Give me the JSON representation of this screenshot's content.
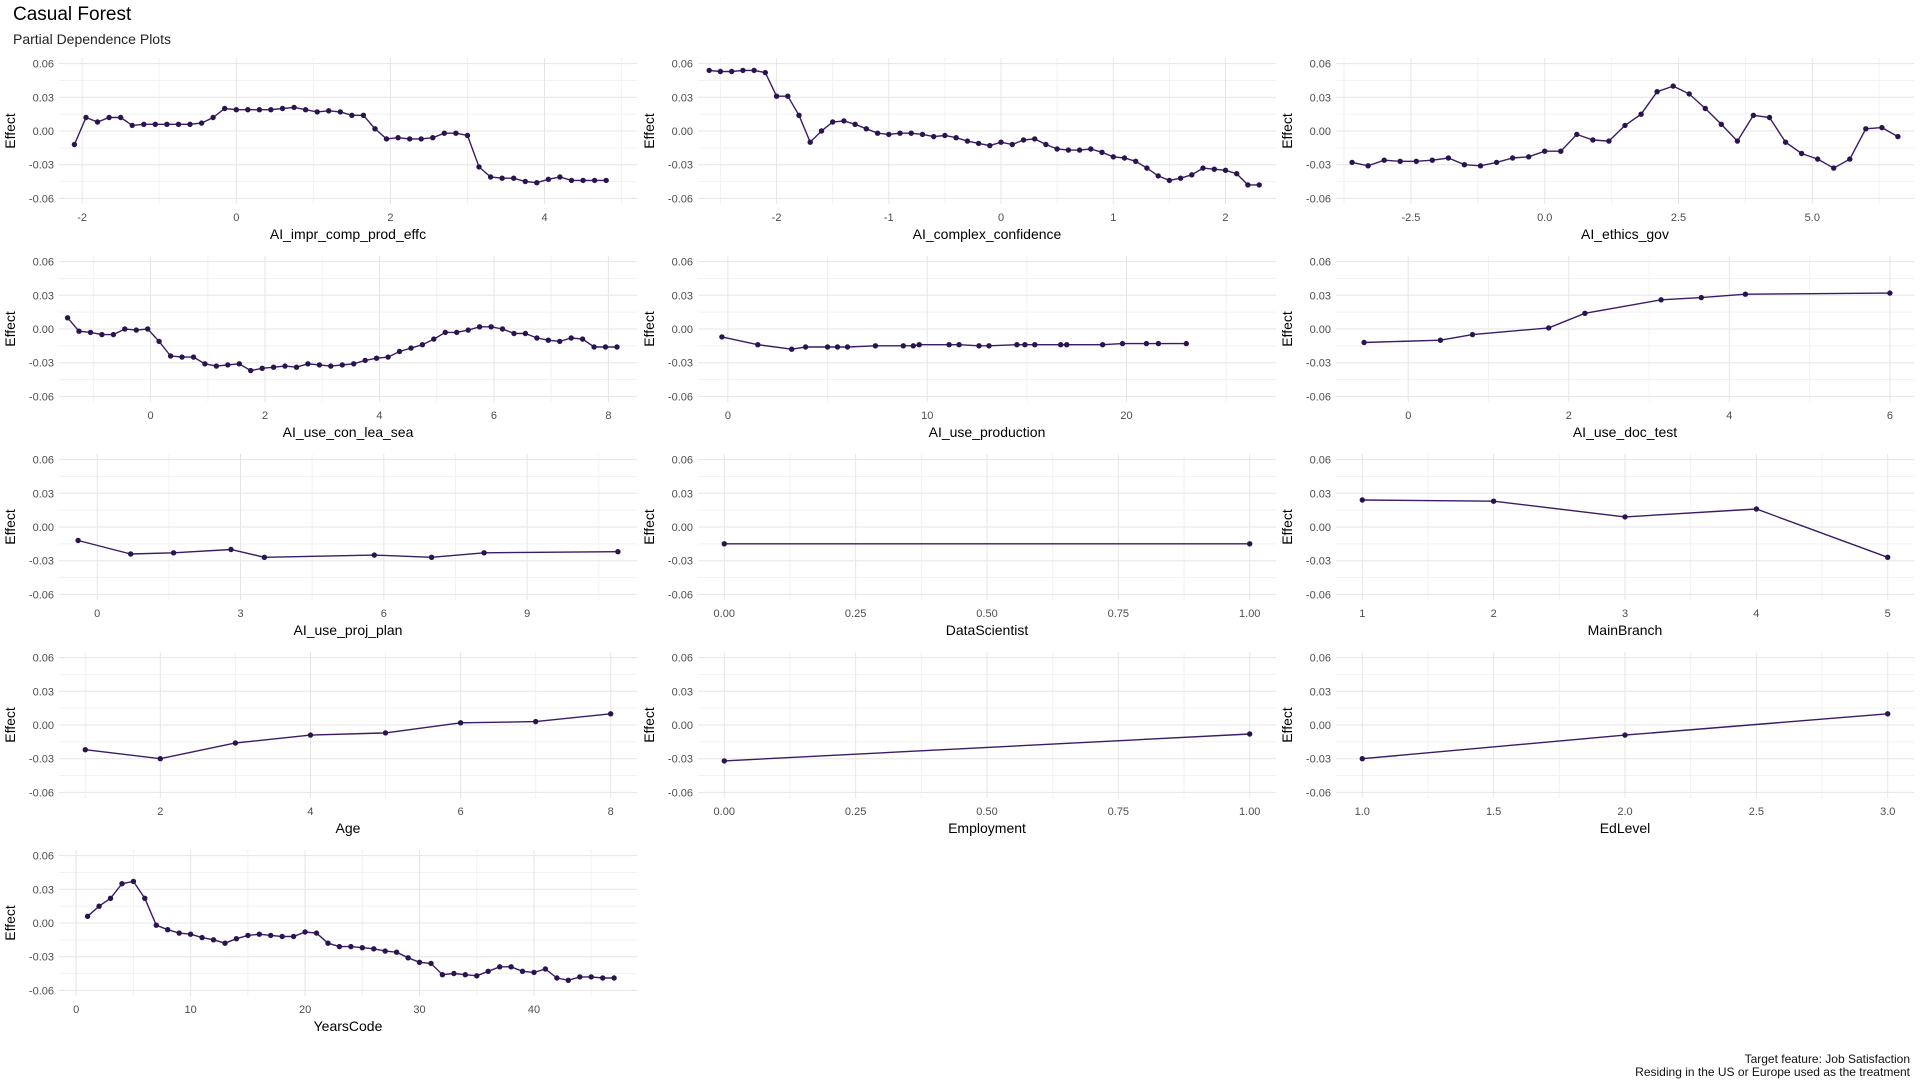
{
  "title": "Casual Forest",
  "subtitle": "Partial Dependence Plots",
  "caption": {
    "line1": "Target feature: Job Satisfaction",
    "line2": "Residing in the US or Europe used as the treatment"
  },
  "colors": {
    "line": "#3b1b66",
    "point": "#2a1450",
    "grid_major": "#e6e6e6",
    "grid_minor": "#f2f2f2"
  },
  "chart_data": [
    {
      "type": "line",
      "xlabel": "AI_impr_comp_prod_effc",
      "ylabel": "Effect",
      "xlim": [
        -2.3,
        5.2
      ],
      "ylim": [
        -0.065,
        0.065
      ],
      "xticks": [
        -2,
        0,
        2,
        4
      ],
      "xtick_labels": [
        "-2",
        "0",
        "2",
        "4"
      ],
      "yticks": [
        0.06,
        0.03,
        0.0,
        -0.03,
        -0.06
      ],
      "ytick_labels": [
        "0.06",
        "0.03",
        "0.00",
        "-0.03",
        "-0.06"
      ],
      "x": [
        -2.1,
        -1.95,
        -1.8,
        -1.65,
        -1.5,
        -1.35,
        -1.2,
        -1.05,
        -0.9,
        -0.75,
        -0.6,
        -0.45,
        -0.3,
        -0.15,
        0.0,
        0.15,
        0.3,
        0.45,
        0.6,
        0.75,
        0.9,
        1.05,
        1.2,
        1.35,
        1.5,
        1.65,
        1.8,
        1.95,
        2.1,
        2.25,
        2.4,
        2.55,
        2.7,
        2.85,
        3.0,
        3.15,
        3.3,
        3.45,
        3.6,
        3.75,
        3.9,
        4.05,
        4.2,
        4.35,
        4.5,
        4.65,
        4.8
      ],
      "y": [
        -0.012,
        0.012,
        0.008,
        0.012,
        0.012,
        0.005,
        0.006,
        0.006,
        0.006,
        0.006,
        0.006,
        0.007,
        0.012,
        0.02,
        0.019,
        0.019,
        0.019,
        0.019,
        0.02,
        0.021,
        0.019,
        0.017,
        0.018,
        0.017,
        0.014,
        0.014,
        0.002,
        -0.007,
        -0.006,
        -0.007,
        -0.007,
        -0.006,
        -0.002,
        -0.002,
        -0.004,
        -0.032,
        -0.041,
        -0.042,
        -0.042,
        -0.045,
        -0.046,
        -0.043,
        -0.041,
        -0.044,
        -0.044,
        -0.044,
        -0.044
      ]
    },
    {
      "type": "line",
      "xlabel": "AI_complex_confidence",
      "ylabel": "Effect",
      "xlim": [
        -2.7,
        2.45
      ],
      "ylim": [
        -0.065,
        0.065
      ],
      "xticks": [
        -2,
        -1,
        0,
        1,
        2
      ],
      "xtick_labels": [
        "-2",
        "-1",
        "0",
        "1",
        "2"
      ],
      "yticks": [
        0.06,
        0.03,
        0.0,
        -0.03,
        -0.06
      ],
      "ytick_labels": [
        "0.06",
        "0.03",
        "0.00",
        "-0.03",
        "-0.06"
      ],
      "x": [
        -2.6,
        -2.5,
        -2.4,
        -2.3,
        -2.2,
        -2.1,
        -2.0,
        -1.9,
        -1.8,
        -1.7,
        -1.6,
        -1.5,
        -1.4,
        -1.3,
        -1.2,
        -1.1,
        -1.0,
        -0.9,
        -0.8,
        -0.7,
        -0.6,
        -0.5,
        -0.4,
        -0.3,
        -0.2,
        -0.1,
        0.0,
        0.1,
        0.2,
        0.3,
        0.4,
        0.5,
        0.6,
        0.7,
        0.8,
        0.9,
        1.0,
        1.1,
        1.2,
        1.3,
        1.4,
        1.5,
        1.6,
        1.7,
        1.8,
        1.9,
        2.0,
        2.1,
        2.2,
        2.3
      ],
      "y": [
        0.054,
        0.053,
        0.053,
        0.054,
        0.054,
        0.052,
        0.031,
        0.031,
        0.014,
        -0.01,
        0.0,
        0.008,
        0.009,
        0.006,
        0.002,
        -0.002,
        -0.003,
        -0.002,
        -0.002,
        -0.003,
        -0.005,
        -0.004,
        -0.006,
        -0.009,
        -0.011,
        -0.013,
        -0.01,
        -0.012,
        -0.008,
        -0.007,
        -0.012,
        -0.016,
        -0.017,
        -0.017,
        -0.016,
        -0.019,
        -0.023,
        -0.024,
        -0.027,
        -0.033,
        -0.04,
        -0.044,
        -0.042,
        -0.039,
        -0.033,
        -0.034,
        -0.035,
        -0.038,
        -0.048,
        -0.048
      ]
    },
    {
      "type": "line",
      "xlabel": "AI_ethics_gov",
      "ylabel": "Effect",
      "xlim": [
        -3.9,
        6.9
      ],
      "ylim": [
        -0.065,
        0.065
      ],
      "xticks": [
        -2.5,
        0.0,
        2.5,
        5.0
      ],
      "xtick_labels": [
        "-2.5",
        "0.0",
        "2.5",
        "5.0"
      ],
      "yticks": [
        0.06,
        0.03,
        0.0,
        -0.03,
        -0.06
      ],
      "ytick_labels": [
        "0.06",
        "0.03",
        "0.00",
        "-0.03",
        "-0.06"
      ],
      "x": [
        -3.6,
        -3.3,
        -3.0,
        -2.7,
        -2.4,
        -2.1,
        -1.8,
        -1.5,
        -1.2,
        -0.9,
        -0.6,
        -0.3,
        0.0,
        0.3,
        0.6,
        0.9,
        1.2,
        1.5,
        1.8,
        2.1,
        2.4,
        2.7,
        3.0,
        3.3,
        3.6,
        3.9,
        4.2,
        4.5,
        4.8,
        5.1,
        5.4,
        5.7,
        6.0,
        6.3,
        6.6
      ],
      "y": [
        -0.028,
        -0.031,
        -0.026,
        -0.027,
        -0.027,
        -0.026,
        -0.024,
        -0.03,
        -0.031,
        -0.028,
        -0.024,
        -0.023,
        -0.018,
        -0.018,
        -0.003,
        -0.008,
        -0.009,
        0.005,
        0.015,
        0.035,
        0.04,
        0.033,
        0.02,
        0.006,
        -0.009,
        0.014,
        0.012,
        -0.01,
        -0.02,
        -0.025,
        -0.033,
        -0.025,
        0.002,
        0.003,
        -0.005
      ]
    },
    {
      "type": "line",
      "xlabel": "AI_use_con_lea_sea",
      "ylabel": "Effect",
      "xlim": [
        -1.6,
        8.5
      ],
      "ylim": [
        -0.065,
        0.065
      ],
      "xticks": [
        0,
        2,
        4,
        6,
        8
      ],
      "xtick_labels": [
        "0",
        "2",
        "4",
        "6",
        "8"
      ],
      "yticks": [
        0.06,
        0.03,
        0.0,
        -0.03,
        -0.06
      ],
      "ytick_labels": [
        "0.06",
        "0.03",
        "0.00",
        "-0.03",
        "-0.06"
      ],
      "x": [
        -1.45,
        -1.25,
        -1.05,
        -0.85,
        -0.65,
        -0.45,
        -0.25,
        -0.05,
        0.15,
        0.35,
        0.55,
        0.75,
        0.95,
        1.15,
        1.35,
        1.55,
        1.75,
        1.95,
        2.15,
        2.35,
        2.55,
        2.75,
        2.95,
        3.15,
        3.35,
        3.55,
        3.75,
        3.95,
        4.15,
        4.35,
        4.55,
        4.75,
        4.95,
        5.15,
        5.35,
        5.55,
        5.75,
        5.95,
        6.15,
        6.35,
        6.55,
        6.75,
        6.95,
        7.15,
        7.35,
        7.55,
        7.75,
        7.95,
        8.15
      ],
      "y": [
        0.01,
        -0.002,
        -0.003,
        -0.005,
        -0.005,
        0.0,
        -0.001,
        0.0,
        -0.011,
        -0.024,
        -0.025,
        -0.025,
        -0.031,
        -0.033,
        -0.032,
        -0.031,
        -0.037,
        -0.035,
        -0.034,
        -0.033,
        -0.034,
        -0.031,
        -0.032,
        -0.033,
        -0.032,
        -0.031,
        -0.028,
        -0.026,
        -0.025,
        -0.02,
        -0.017,
        -0.014,
        -0.009,
        -0.003,
        -0.003,
        -0.001,
        0.002,
        0.002,
        0.0,
        -0.004,
        -0.004,
        -0.008,
        -0.01,
        -0.011,
        -0.008,
        -0.009,
        -0.016,
        -0.016,
        -0.016
      ]
    },
    {
      "type": "line",
      "xlabel": "AI_use_production",
      "ylabel": "Effect",
      "xlim": [
        -1.5,
        27.5
      ],
      "ylim": [
        -0.065,
        0.065
      ],
      "xticks": [
        0,
        10,
        20
      ],
      "xtick_labels": [
        "0",
        "10",
        "20"
      ],
      "yticks": [
        0.06,
        0.03,
        0.0,
        -0.03,
        -0.06
      ],
      "ytick_labels": [
        "0.06",
        "0.03",
        "0.00",
        "-0.03",
        "-0.06"
      ],
      "x": [
        -0.3,
        1.5,
        3.2,
        3.9,
        5.0,
        5.5,
        6.0,
        7.4,
        8.8,
        9.3,
        9.6,
        11.1,
        11.6,
        12.6,
        13.1,
        14.5,
        14.9,
        15.4,
        16.7,
        17.0,
        18.8,
        19.8,
        21.0,
        21.6,
        23.0
      ],
      "y": [
        -0.007,
        -0.014,
        -0.018,
        -0.016,
        -0.016,
        -0.016,
        -0.016,
        -0.015,
        -0.015,
        -0.015,
        -0.014,
        -0.014,
        -0.014,
        -0.015,
        -0.015,
        -0.014,
        -0.014,
        -0.014,
        -0.014,
        -0.014,
        -0.014,
        -0.013,
        -0.013,
        -0.013,
        -0.013
      ]
    },
    {
      "type": "line",
      "xlabel": "AI_use_doc_test",
      "ylabel": "Effect",
      "xlim": [
        -0.9,
        6.3
      ],
      "ylim": [
        -0.065,
        0.065
      ],
      "xticks": [
        0,
        2,
        4,
        6
      ],
      "xtick_labels": [
        "0",
        "2",
        "4",
        "6"
      ],
      "yticks": [
        0.06,
        0.03,
        0.0,
        -0.03,
        -0.06
      ],
      "ytick_labels": [
        "0.06",
        "0.03",
        "0.00",
        "-0.03",
        "-0.06"
      ],
      "x": [
        -0.55,
        0.4,
        0.8,
        1.75,
        2.2,
        3.15,
        3.65,
        4.2,
        6.0
      ],
      "y": [
        -0.012,
        -0.01,
        -0.005,
        0.001,
        0.014,
        0.026,
        0.028,
        0.031,
        0.032
      ]
    },
    {
      "type": "line",
      "xlabel": "AI_use_proj_plan",
      "ylabel": "Effect",
      "xlim": [
        -0.8,
        11.3
      ],
      "ylim": [
        -0.065,
        0.065
      ],
      "xticks": [
        0,
        3,
        6,
        9
      ],
      "xtick_labels": [
        "0",
        "3",
        "6",
        "9"
      ],
      "yticks": [
        0.06,
        0.03,
        0.0,
        -0.03,
        -0.06
      ],
      "ytick_labels": [
        "0.06",
        "0.03",
        "0.00",
        "-0.03",
        "-0.06"
      ],
      "x": [
        -0.4,
        0.7,
        1.6,
        2.8,
        3.5,
        5.8,
        7.0,
        8.1,
        10.9
      ],
      "y": [
        -0.012,
        -0.024,
        -0.023,
        -0.02,
        -0.027,
        -0.025,
        -0.027,
        -0.023,
        -0.022
      ]
    },
    {
      "type": "line",
      "xlabel": "DataScientist",
      "ylabel": "Effect",
      "xlim": [
        -0.05,
        1.05
      ],
      "ylim": [
        -0.065,
        0.065
      ],
      "xticks": [
        0.0,
        0.25,
        0.5,
        0.75,
        1.0
      ],
      "xtick_labels": [
        "0.00",
        "0.25",
        "0.50",
        "0.75",
        "1.00"
      ],
      "yticks": [
        0.06,
        0.03,
        0.0,
        -0.03,
        -0.06
      ],
      "ytick_labels": [
        "0.06",
        "0.03",
        "0.00",
        "-0.03",
        "-0.06"
      ],
      "x": [
        0.0,
        1.0
      ],
      "y": [
        -0.015,
        -0.015
      ]
    },
    {
      "type": "line",
      "xlabel": "MainBranch",
      "ylabel": "Effect",
      "xlim": [
        0.8,
        5.2
      ],
      "ylim": [
        -0.065,
        0.065
      ],
      "xticks": [
        1,
        2,
        3,
        4,
        5
      ],
      "xtick_labels": [
        "1",
        "2",
        "3",
        "4",
        "5"
      ],
      "yticks": [
        0.06,
        0.03,
        0.0,
        -0.03,
        -0.06
      ],
      "ytick_labels": [
        "0.06",
        "0.03",
        "0.00",
        "-0.03",
        "-0.06"
      ],
      "x": [
        1,
        2,
        3,
        4,
        5
      ],
      "y": [
        0.024,
        0.023,
        0.009,
        0.016,
        -0.027
      ]
    },
    {
      "type": "line",
      "xlabel": "Age",
      "ylabel": "Effect",
      "xlim": [
        0.65,
        8.35
      ],
      "ylim": [
        -0.065,
        0.065
      ],
      "xticks": [
        2,
        4,
        6,
        8
      ],
      "xtick_labels": [
        "2",
        "4",
        "6",
        "8"
      ],
      "yticks": [
        0.06,
        0.03,
        0.0,
        -0.03,
        -0.06
      ],
      "ytick_labels": [
        "0.06",
        "0.03",
        "0.00",
        "-0.03",
        "-0.06"
      ],
      "x": [
        1,
        2,
        3,
        4,
        5,
        6,
        7,
        8
      ],
      "y": [
        -0.022,
        -0.03,
        -0.016,
        -0.009,
        -0.007,
        0.002,
        0.003,
        0.01
      ]
    },
    {
      "type": "line",
      "xlabel": "Employment",
      "ylabel": "Effect",
      "xlim": [
        -0.05,
        1.05
      ],
      "ylim": [
        -0.065,
        0.065
      ],
      "xticks": [
        0.0,
        0.25,
        0.5,
        0.75,
        1.0
      ],
      "xtick_labels": [
        "0.00",
        "0.25",
        "0.50",
        "0.75",
        "1.00"
      ],
      "yticks": [
        0.06,
        0.03,
        0.0,
        -0.03,
        -0.06
      ],
      "ytick_labels": [
        "0.06",
        "0.03",
        "0.00",
        "-0.03",
        "-0.06"
      ],
      "x": [
        0.0,
        1.0
      ],
      "y": [
        -0.032,
        -0.008
      ]
    },
    {
      "type": "line",
      "xlabel": "EdLevel",
      "ylabel": "Effect",
      "xlim": [
        0.9,
        3.1
      ],
      "ylim": [
        -0.065,
        0.065
      ],
      "xticks": [
        1.0,
        1.5,
        2.0,
        2.5,
        3.0
      ],
      "xtick_labels": [
        "1.0",
        "1.5",
        "2.0",
        "2.5",
        "3.0"
      ],
      "yticks": [
        0.06,
        0.03,
        0.0,
        -0.03,
        -0.06
      ],
      "ytick_labels": [
        "0.06",
        "0.03",
        "0.00",
        "-0.03",
        "-0.06"
      ],
      "x": [
        1.0,
        2.0,
        3.0
      ],
      "y": [
        -0.03,
        -0.009,
        0.01
      ]
    },
    {
      "type": "line",
      "xlabel": "YearsCode",
      "ylabel": "Effect",
      "xlim": [
        -1.5,
        49
      ],
      "ylim": [
        -0.065,
        0.065
      ],
      "xticks": [
        0,
        10,
        20,
        30,
        40
      ],
      "xtick_labels": [
        "0",
        "10",
        "20",
        "30",
        "40"
      ],
      "yticks": [
        0.06,
        0.03,
        0.0,
        -0.03,
        -0.06
      ],
      "ytick_labels": [
        "0.06",
        "0.03",
        "0.00",
        "-0.03",
        "-0.06"
      ],
      "x": [
        1,
        2,
        3,
        4,
        5,
        6,
        7,
        8,
        9,
        10,
        11,
        12,
        13,
        14,
        15,
        16,
        17,
        18,
        19,
        20,
        21,
        22,
        23,
        24,
        25,
        26,
        27,
        28,
        29,
        30,
        31,
        32,
        33,
        34,
        35,
        36,
        37,
        38,
        39,
        40,
        41,
        42,
        43,
        44,
        45,
        46,
        47
      ],
      "y": [
        0.006,
        0.015,
        0.022,
        0.035,
        0.037,
        0.022,
        -0.002,
        -0.006,
        -0.009,
        -0.01,
        -0.013,
        -0.015,
        -0.018,
        -0.014,
        -0.011,
        -0.01,
        -0.011,
        -0.012,
        -0.012,
        -0.008,
        -0.009,
        -0.018,
        -0.021,
        -0.021,
        -0.022,
        -0.023,
        -0.025,
        -0.026,
        -0.031,
        -0.035,
        -0.036,
        -0.046,
        -0.045,
        -0.046,
        -0.047,
        -0.043,
        -0.039,
        -0.039,
        -0.043,
        -0.044,
        -0.041,
        -0.049,
        -0.051,
        -0.048,
        -0.048,
        -0.049,
        -0.049
      ]
    }
  ]
}
